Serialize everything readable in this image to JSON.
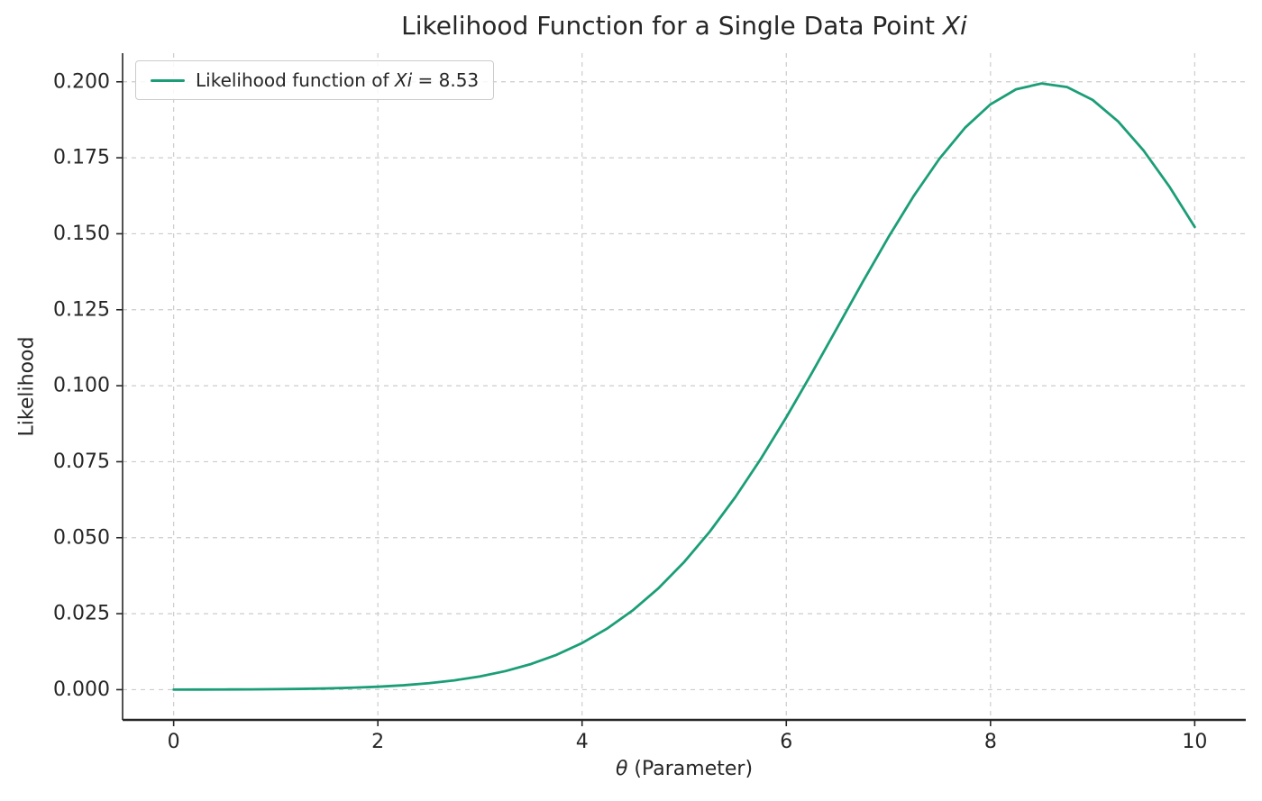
{
  "page": {
    "background": "#ffffff"
  },
  "chart_data": {
    "type": "line",
    "title": {
      "text": "Likelihood Function for a Single Data Point ",
      "math": "Xi"
    },
    "xlabel": {
      "math": "θ",
      "text": " (Parameter)"
    },
    "ylabel": "Likelihood",
    "xlim": [
      -0.5,
      10.5
    ],
    "ylim": [
      -0.00995,
      0.20942
    ],
    "x_ticks": [
      0,
      2,
      4,
      6,
      8,
      10
    ],
    "y_ticks": [
      0.0,
      0.025,
      0.05,
      0.075,
      0.1,
      0.125,
      0.15,
      0.175,
      0.2
    ],
    "grid": {
      "on": true,
      "dashed": true,
      "color": "#cccccc"
    },
    "axis_color": "#262626",
    "legend": {
      "position": "upper-left",
      "prefix": "Likelihood function of ",
      "math": "Xi",
      "suffix": " = 8.53"
    },
    "series": [
      {
        "name": "Likelihood function of Xi = 8.53",
        "color": "#1b9e77",
        "line_width": 2.8,
        "x": [
          0,
          0.25,
          0.5,
          0.75,
          1,
          1.25,
          1.5,
          1.75,
          2,
          2.25,
          2.5,
          2.75,
          3,
          3.25,
          3.5,
          3.75,
          4,
          4.25,
          4.5,
          4.75,
          5,
          5.25,
          5.5,
          5.75,
          6,
          6.25,
          6.5,
          6.75,
          7,
          7.25,
          7.5,
          7.75,
          8,
          8.25,
          8.5,
          8.75,
          9,
          9.25,
          9.5,
          9.75,
          10
        ],
        "y": [
          2.2e-05,
          3.8e-05,
          6.3e-05,
          0.000103,
          0.000167,
          0.000265,
          0.000414,
          0.000638,
          0.000966,
          0.001443,
          0.002119,
          0.003063,
          0.004364,
          0.006115,
          0.00844,
          0.011466,
          0.015343,
          0.020204,
          0.026194,
          0.033435,
          0.042015,
          0.051972,
          0.063315,
          0.075913,
          0.089621,
          0.104152,
          0.119169,
          0.134239,
          0.148869,
          0.162531,
          0.1747,
          0.184864,
          0.19259,
          0.197526,
          0.199449,
          0.198268,
          0.19404,
          0.186955,
          0.177339,
          0.165608,
          0.152257
        ]
      }
    ]
  }
}
